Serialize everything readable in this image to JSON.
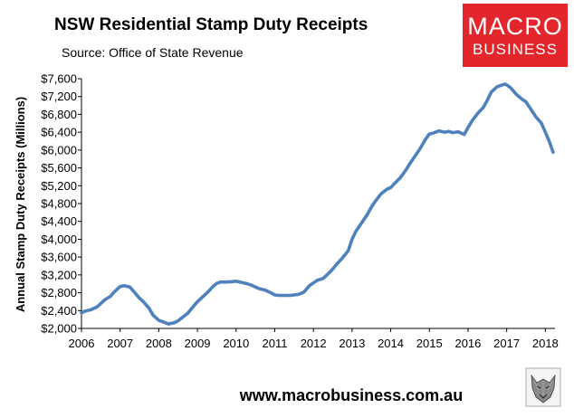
{
  "header": {
    "title": "NSW Residential Stamp Duty Receipts",
    "subtitle": "Source: Office of State Revenue"
  },
  "logo": {
    "line1": "MACRO",
    "line2": "BUSINESS",
    "color": "#e2262c"
  },
  "footer": {
    "website": "www.macrobusiness.com.au",
    "mascot_icon": "wolf-head-icon"
  },
  "chart_data": {
    "type": "line",
    "title": "NSW Residential Stamp Duty Receipts",
    "ylabel": "Annual Stamp Duty Receipts (Millions)",
    "xlabel": "",
    "xlim": [
      2006,
      2018.25
    ],
    "ylim": [
      2000,
      7600
    ],
    "x_ticks": [
      2006,
      2007,
      2008,
      2009,
      2010,
      2011,
      2012,
      2013,
      2014,
      2015,
      2016,
      2017,
      2018
    ],
    "y_ticks": [
      2000,
      2400,
      2800,
      3200,
      3600,
      4000,
      4400,
      4800,
      5200,
      5600,
      6000,
      6400,
      6800,
      7200,
      7600
    ],
    "y_tick_labels": [
      "$2,000",
      "$2,400",
      "$2,800",
      "$3,200",
      "$3,600",
      "$4,000",
      "$4,400",
      "$4,800",
      "$5,200",
      "$5,600",
      "$6,000",
      "$6,400",
      "$6,800",
      "$7,200",
      "$7,600"
    ],
    "grid": false,
    "legend": "none",
    "line_color": "#4f81bd",
    "series": [
      {
        "x": [
          2006.0,
          2006.1,
          2006.25,
          2006.4,
          2006.5,
          2006.6,
          2006.75,
          2006.85,
          2007.0,
          2007.1,
          2007.25,
          2007.4,
          2007.5,
          2007.6,
          2007.75,
          2007.85,
          2008.0,
          2008.1,
          2008.25,
          2008.4,
          2008.5,
          2008.6,
          2008.75,
          2008.9,
          2009.0,
          2009.15,
          2009.25,
          2009.4,
          2009.5,
          2009.6,
          2009.75,
          2009.9,
          2010.0,
          2010.1,
          2010.25,
          2010.4,
          2010.5,
          2010.6,
          2010.75,
          2010.9,
          2011.0,
          2011.1,
          2011.25,
          2011.4,
          2011.5,
          2011.6,
          2011.75,
          2011.9,
          2012.0,
          2012.1,
          2012.25,
          2012.4,
          2012.5,
          2012.6,
          2012.75,
          2012.9,
          2013.0,
          2013.1,
          2013.25,
          2013.4,
          2013.5,
          2013.6,
          2013.75,
          2013.9,
          2014.0,
          2014.1,
          2014.25,
          2014.4,
          2014.5,
          2014.6,
          2014.75,
          2014.9,
          2015.0,
          2015.1,
          2015.25,
          2015.4,
          2015.5,
          2015.6,
          2015.75,
          2015.9,
          2016.0,
          2016.1,
          2016.25,
          2016.4,
          2016.5,
          2016.6,
          2016.75,
          2016.85,
          2016.95,
          2017.0,
          2017.1,
          2017.25,
          2017.4,
          2017.5,
          2017.6,
          2017.75,
          2017.9,
          2018.0,
          2018.1,
          2018.2
        ],
        "values": [
          2350,
          2390,
          2420,
          2480,
          2560,
          2640,
          2720,
          2820,
          2940,
          2960,
          2930,
          2780,
          2680,
          2600,
          2450,
          2300,
          2180,
          2150,
          2100,
          2130,
          2170,
          2240,
          2340,
          2500,
          2600,
          2720,
          2800,
          2940,
          3010,
          3040,
          3040,
          3050,
          3060,
          3040,
          3010,
          2970,
          2930,
          2890,
          2860,
          2800,
          2750,
          2740,
          2740,
          2740,
          2750,
          2760,
          2810,
          2960,
          3020,
          3080,
          3120,
          3240,
          3330,
          3440,
          3580,
          3740,
          4000,
          4180,
          4370,
          4560,
          4720,
          4850,
          5020,
          5120,
          5160,
          5250,
          5380,
          5560,
          5700,
          5830,
          6020,
          6240,
          6360,
          6380,
          6430,
          6400,
          6420,
          6390,
          6410,
          6350,
          6500,
          6650,
          6820,
          6960,
          7120,
          7300,
          7420,
          7450,
          7480,
          7460,
          7400,
          7250,
          7140,
          7080,
          6950,
          6750,
          6600,
          6400,
          6200,
          5950
        ]
      }
    ]
  }
}
